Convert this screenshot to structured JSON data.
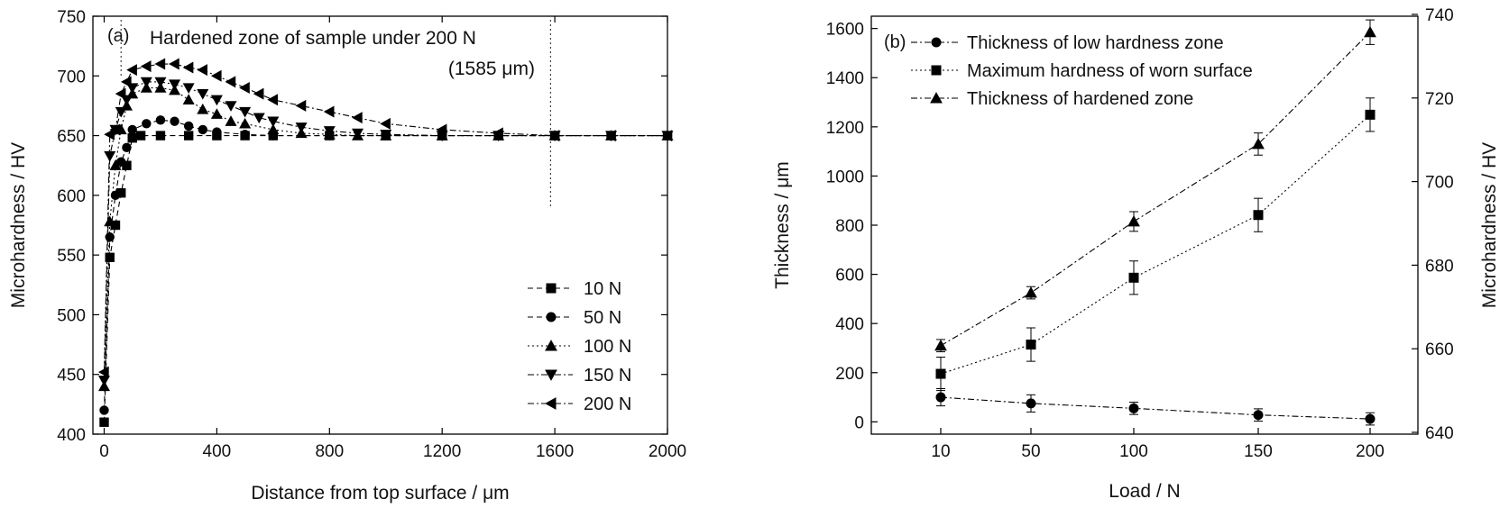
{
  "chart_data": [
    {
      "type": "line",
      "panel_label": "(a)",
      "xlabel": "Distance from top surface / μm",
      "ylabel": "Microhardness / HV",
      "xlim": [
        -40,
        2000
      ],
      "ylim": [
        400,
        750
      ],
      "xticks": [
        0,
        400,
        800,
        1200,
        1600,
        2000
      ],
      "yticks": [
        400,
        450,
        500,
        550,
        600,
        650,
        700,
        750
      ],
      "annotations": {
        "zone_text": "Hardened zone of sample under 200 N",
        "depth_text": "(1585 μm)",
        "zone_marker_x": [
          60,
          1585
        ]
      },
      "legend_position": "bottom-right",
      "series": [
        {
          "name": "10 N",
          "marker": "square",
          "dash": "dash",
          "x": [
            0,
            20,
            40,
            60,
            80,
            100,
            130,
            200,
            300,
            400,
            500,
            600,
            800,
            1000,
            1200,
            1400,
            1600,
            1800,
            2000
          ],
          "y": [
            410,
            548,
            575,
            602,
            625,
            648,
            650,
            650,
            650,
            650,
            650,
            650,
            650,
            650,
            650,
            650,
            650,
            650,
            650
          ]
        },
        {
          "name": "50 N",
          "marker": "circle",
          "dash": "dash",
          "x": [
            0,
            20,
            40,
            60,
            80,
            100,
            150,
            200,
            250,
            300,
            350,
            400,
            500,
            600,
            800,
            1000,
            1200,
            1400,
            1600,
            1800,
            2000
          ],
          "y": [
            420,
            565,
            600,
            628,
            640,
            655,
            660,
            663,
            662,
            658,
            655,
            653,
            651,
            650,
            650,
            650,
            650,
            650,
            650,
            650,
            650
          ]
        },
        {
          "name": "100 N",
          "marker": "triangle-up",
          "dash": "dot",
          "x": [
            0,
            20,
            40,
            60,
            80,
            100,
            150,
            200,
            250,
            300,
            350,
            400,
            450,
            500,
            600,
            700,
            800,
            900,
            1000,
            1200,
            1400,
            1600,
            1800,
            2000
          ],
          "y": [
            440,
            578,
            625,
            655,
            675,
            685,
            690,
            690,
            688,
            680,
            672,
            668,
            662,
            660,
            655,
            652,
            651,
            650,
            650,
            650,
            650,
            650,
            650,
            650
          ]
        },
        {
          "name": "150 N",
          "marker": "triangle-down",
          "dash": "dashdot",
          "x": [
            0,
            20,
            40,
            60,
            80,
            100,
            150,
            200,
            250,
            300,
            350,
            400,
            450,
            500,
            550,
            600,
            700,
            800,
            900,
            1000,
            1200,
            1400,
            1600,
            1800,
            2000
          ],
          "y": [
            445,
            633,
            655,
            670,
            680,
            690,
            695,
            695,
            693,
            690,
            685,
            680,
            675,
            670,
            665,
            662,
            657,
            654,
            652,
            651,
            650,
            650,
            650,
            650,
            650
          ]
        },
        {
          "name": "200 N",
          "marker": "triangle-left",
          "dash": "dashdot",
          "x": [
            0,
            20,
            40,
            60,
            80,
            100,
            150,
            200,
            250,
            300,
            350,
            400,
            450,
            500,
            550,
            600,
            700,
            800,
            900,
            1000,
            1200,
            1400,
            1600,
            1800,
            2000
          ],
          "y": [
            452,
            651,
            655,
            685,
            695,
            705,
            708,
            710,
            710,
            707,
            705,
            700,
            695,
            690,
            685,
            680,
            675,
            670,
            665,
            660,
            655,
            652,
            650,
            650,
            650
          ]
        }
      ]
    },
    {
      "type": "line",
      "panel_label": "(b)",
      "xlabel": "Load / N",
      "ylabel": "Thickness / μm",
      "ylabel_right": "Microhardness / HV",
      "categories": [
        "10",
        "50",
        "100",
        "150",
        "200"
      ],
      "ylim": [
        -50,
        1650
      ],
      "yticks": [
        0,
        200,
        400,
        600,
        800,
        1000,
        1200,
        1400,
        1600
      ],
      "ylim_right": [
        640,
        740
      ],
      "yticks_right": [
        640,
        660,
        680,
        700,
        720,
        740
      ],
      "legend_position": "top-left",
      "series": [
        {
          "name": "Thickness of low hardness zone",
          "marker": "circle",
          "dash": "dashdot",
          "axis": "left",
          "values": [
            100,
            75,
            55,
            28,
            12
          ],
          "errors": [
            35,
            35,
            25,
            25,
            25
          ]
        },
        {
          "name": "Maximum hardness of worn surface",
          "marker": "square",
          "dash": "dot",
          "axis": "right",
          "values": [
            654,
            661,
            677,
            692,
            716
          ],
          "errors": [
            4,
            4,
            4,
            4,
            4
          ]
        },
        {
          "name": "Thickness of hardened zone",
          "marker": "triangle-up",
          "dash": "dashdot",
          "axis": "left",
          "values": [
            310,
            525,
            815,
            1130,
            1585
          ],
          "errors": [
            25,
            25,
            40,
            45,
            50
          ]
        }
      ]
    }
  ]
}
